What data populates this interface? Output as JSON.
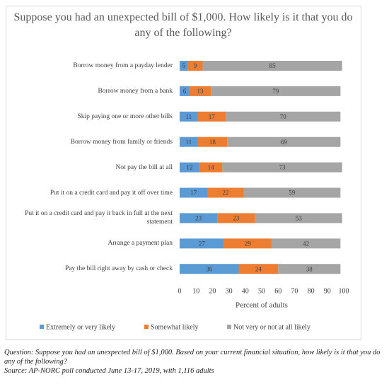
{
  "chart_data": {
    "type": "stacked-bar-horizontal",
    "title": "Suppose you had an unexpected bill of $1,000. How likely is it that you do any of the following?",
    "categories": [
      "Borrow money from a payday lender",
      "Borrow money from a bank",
      "Skip paying one or more other bills",
      "Borrow money from family or friends",
      "Not pay the bill at all",
      "Put it on a credit card and pay it off over time",
      "Put it on a credit card and pay it back in full at the next statement",
      "Arrange a payment plan",
      "Pay the bill right away by cash or check"
    ],
    "series": [
      {
        "name": "Extremely or very likely",
        "color": "#5b9bd5",
        "values": [
          5,
          6,
          11,
          11,
          12,
          17,
          23,
          27,
          36
        ]
      },
      {
        "name": "Somewhat likely",
        "color": "#ed7d31",
        "values": [
          9,
          13,
          17,
          18,
          14,
          22,
          23,
          29,
          24
        ]
      },
      {
        "name": "Not very or not at all likely",
        "color": "#a5a5a5",
        "values": [
          85,
          79,
          70,
          69,
          73,
          59,
          53,
          42,
          38
        ]
      }
    ],
    "xlabel": "Percent of adults",
    "xlim": [
      0,
      100
    ],
    "xticks": [
      0,
      10,
      20,
      30,
      40,
      50,
      60,
      70,
      80,
      90,
      100
    ],
    "grid": false,
    "legend": "bottom"
  },
  "notes": [
    "Question: Suppose you had an unexpected bill of $1,000. Based on your current financial situation, how likely is it that you do any of the following?",
    "Source: AP-NORC poll conducted June 13-17, 2019, with 1,116 adults"
  ]
}
